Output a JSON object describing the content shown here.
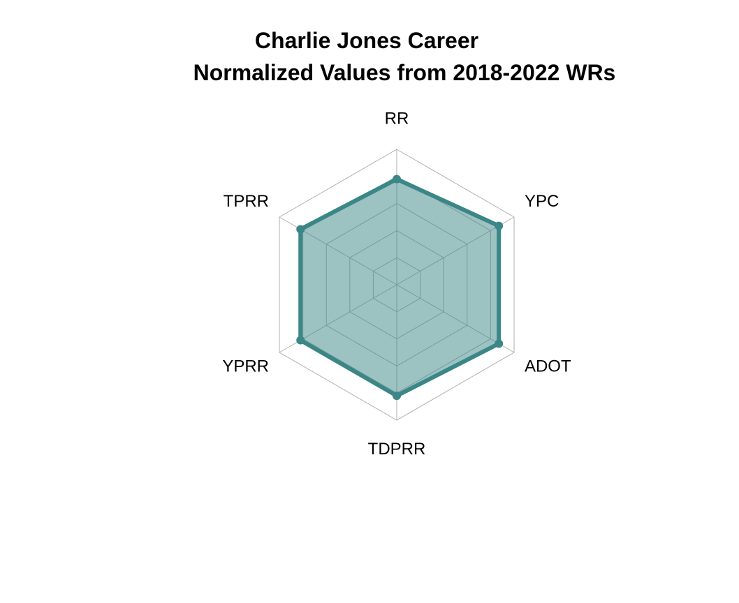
{
  "chart_data": {
    "type": "radar",
    "title_lines": [
      "Charlie Jones Career",
      "Normalized Values from 2018-2022 WRs"
    ],
    "axes": [
      "RR",
      "YPC",
      "ADOT",
      "TDPRR",
      "YPRR",
      "TPRR"
    ],
    "range": [
      0,
      1
    ],
    "grid_levels": 5,
    "grid": true,
    "series": [
      {
        "values": [
          0.78,
          0.87,
          0.87,
          0.82,
          0.82,
          0.82
        ]
      }
    ],
    "colors": {
      "series_line": "#3b8686",
      "series_fill": "#3b8686",
      "grid": "#b0b0b0"
    }
  }
}
